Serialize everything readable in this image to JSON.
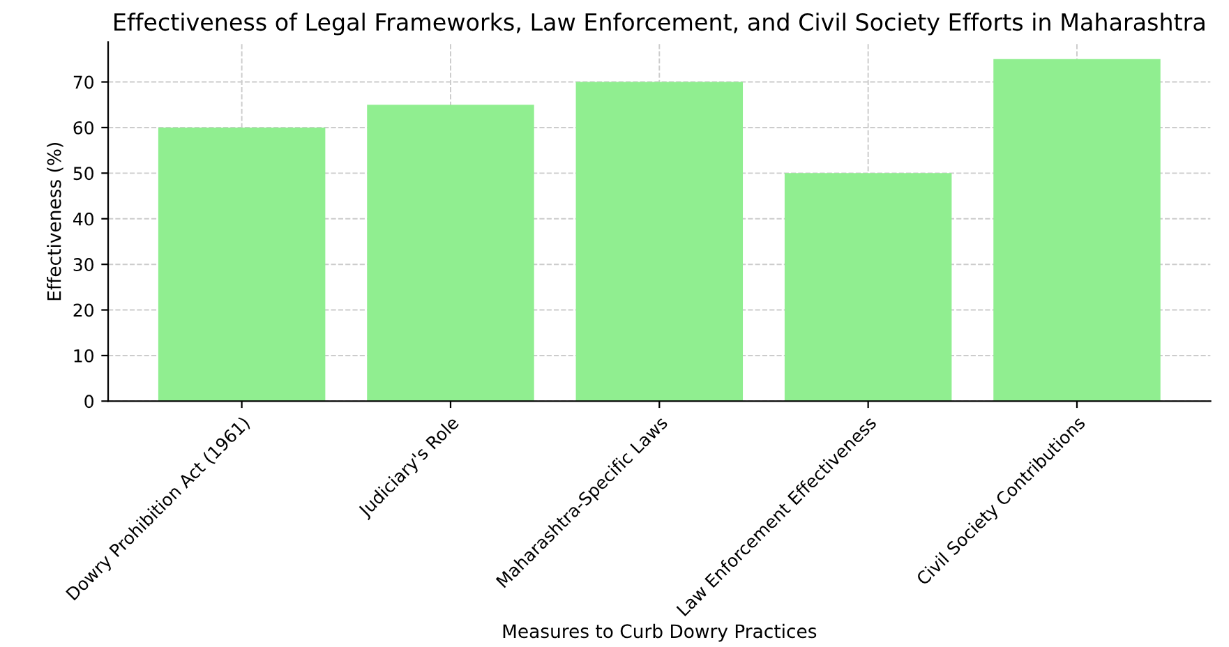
{
  "chart_data": {
    "type": "bar",
    "title": "Effectiveness of Legal Frameworks, Law Enforcement, and Civil Society Efforts in Maharashtra",
    "xlabel": "Measures to Curb Dowry Practices",
    "ylabel": "Effectiveness (%)",
    "categories": [
      "Dowry Prohibition Act (1961)",
      "Judiciary's Role",
      "Maharashtra-Specific Laws",
      "Law Enforcement Effectiveness",
      "Civil Society Contributions"
    ],
    "values": [
      60,
      65,
      70,
      50,
      75
    ],
    "color": "#90ee90",
    "ylim": [
      0,
      78.75
    ],
    "yticks": [
      0,
      10,
      20,
      30,
      40,
      50,
      60,
      70
    ],
    "grid": true,
    "line_style": "dashed"
  }
}
